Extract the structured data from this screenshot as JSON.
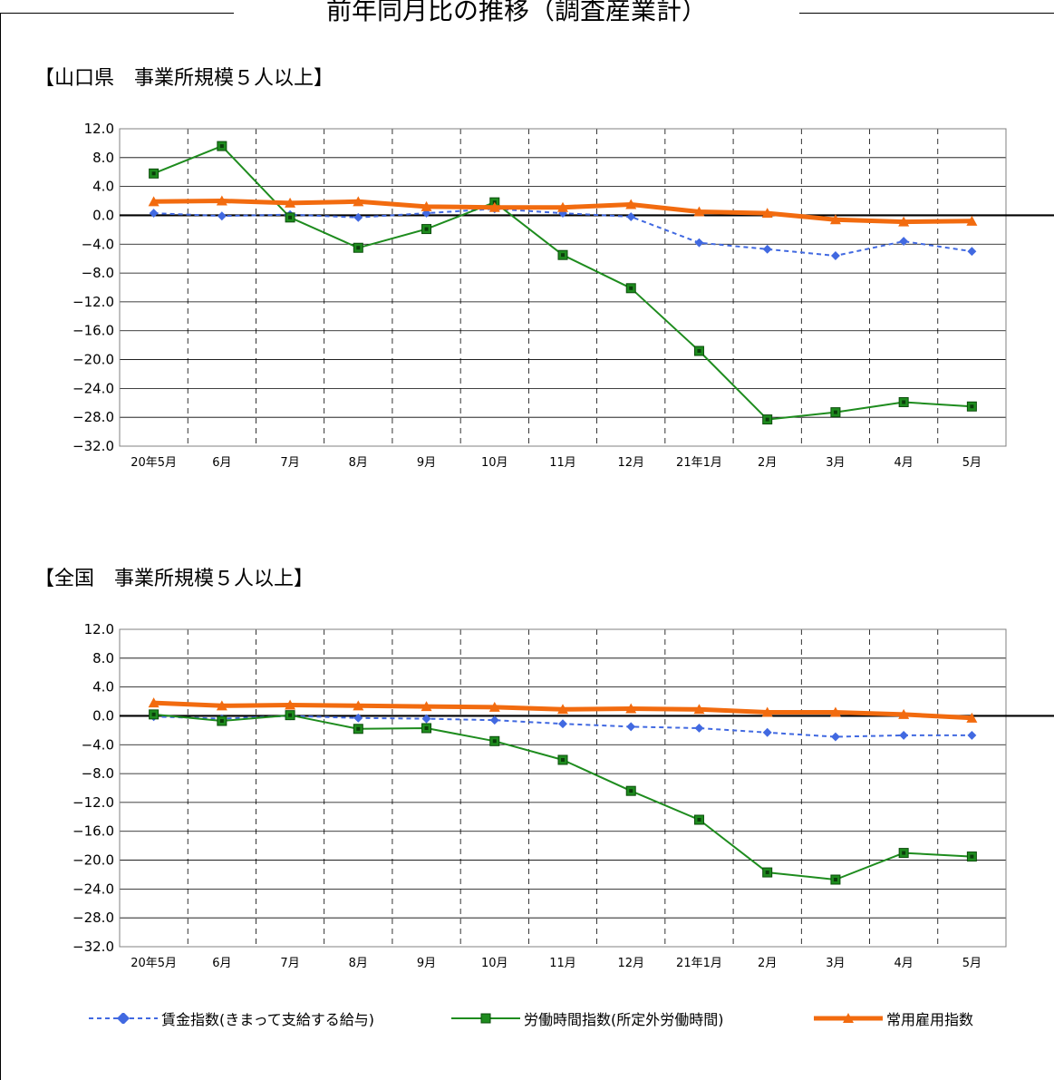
{
  "page": {
    "title": "前年同月比の推移（調査産業計）"
  },
  "sections": [
    {
      "label": "【山口県　事業所規模５人以上】"
    },
    {
      "label": "【全国　事業所規模５人以上】"
    }
  ],
  "legend": [
    {
      "label": "賃金指数(きまって支給する給与)",
      "color": "#4169E1"
    },
    {
      "label": "労働時間指数(所定外労働時間)",
      "color": "#1E8C1E"
    },
    {
      "label": "常用雇用指数",
      "color": "#F26B0F"
    }
  ],
  "chart_data": [
    {
      "type": "line",
      "title": "【山口県　事業所規模５人以上】",
      "categories": [
        "20年5月",
        "6月",
        "7月",
        "8月",
        "9月",
        "10月",
        "11月",
        "12月",
        "21年1月",
        "2月",
        "3月",
        "4月",
        "5月"
      ],
      "ylim": [
        -32.0,
        12.0
      ],
      "yticks": [
        "12.0",
        "8.0",
        "4.0",
        "0.0",
        "−4.0",
        "−8.0",
        "−12.0",
        "−16.0",
        "−20.0",
        "−24.0",
        "−28.0",
        "−32.0"
      ],
      "series": [
        {
          "name": "賃金指数(きまって支給する給与)",
          "color": "#4169E1",
          "values": [
            0.3,
            -0.1,
            0.1,
            -0.3,
            0.3,
            0.9,
            0.3,
            -0.2,
            -3.8,
            -4.7,
            -5.6,
            -3.6,
            -5.0
          ]
        },
        {
          "name": "労働時間指数(所定外労働時間)",
          "color": "#1E8C1E",
          "values": [
            5.8,
            9.6,
            -0.3,
            -4.5,
            -1.9,
            1.8,
            -5.5,
            -10.1,
            -18.8,
            -28.3,
            -27.3,
            -25.9,
            -26.5
          ]
        },
        {
          "name": "常用雇用指数",
          "color": "#F26B0F",
          "values": [
            1.9,
            2.0,
            1.7,
            1.9,
            1.2,
            1.1,
            1.1,
            1.5,
            0.5,
            0.3,
            -0.6,
            -0.9,
            -0.8
          ]
        }
      ]
    },
    {
      "type": "line",
      "title": "【全国　事業所規模５人以上】",
      "categories": [
        "20年5月",
        "6月",
        "7月",
        "8月",
        "9月",
        "10月",
        "11月",
        "12月",
        "21年1月",
        "2月",
        "3月",
        "4月",
        "5月"
      ],
      "ylim": [
        -32.0,
        12.0
      ],
      "yticks": [
        "12.0",
        "8.0",
        "4.0",
        "0.0",
        "−4.0",
        "−8.0",
        "−12.0",
        "−16.0",
        "−20.0",
        "−24.0",
        "−28.0",
        "−32.0"
      ],
      "series": [
        {
          "name": "賃金指数(きまって支給する給与)",
          "color": "#4169E1",
          "values": [
            -0.1,
            -0.4,
            0.0,
            -0.3,
            -0.4,
            -0.6,
            -1.1,
            -1.5,
            -1.7,
            -2.3,
            -2.9,
            -2.7,
            -2.7
          ]
        },
        {
          "name": "労働時間指数(所定外労働時間)",
          "color": "#1E8C1E",
          "values": [
            0.2,
            -0.7,
            0.1,
            -1.8,
            -1.7,
            -3.5,
            -6.1,
            -10.4,
            -14.4,
            -21.7,
            -22.7,
            -19.0,
            -19.5
          ]
        },
        {
          "name": "常用雇用指数",
          "color": "#F26B0F",
          "values": [
            1.8,
            1.4,
            1.5,
            1.4,
            1.3,
            1.2,
            0.9,
            1.0,
            0.9,
            0.5,
            0.5,
            0.2,
            -0.3
          ]
        }
      ]
    }
  ]
}
